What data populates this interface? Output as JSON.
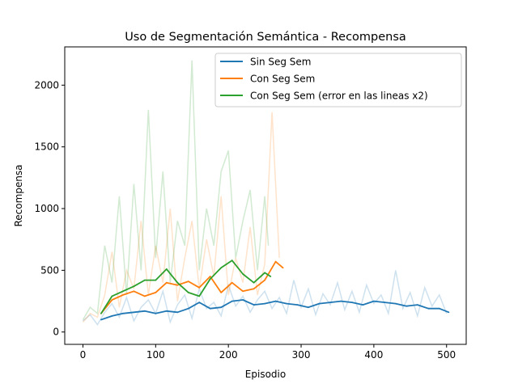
{
  "chart_data": {
    "type": "line",
    "title": "Uso de Segmentación Semántica - Recompensa",
    "xlabel": "Episodio",
    "ylabel": "Recompensa",
    "xlim": [
      -25,
      527
    ],
    "ylim": [
      -100,
      2310
    ],
    "x_ticks": [
      0,
      100,
      200,
      300,
      400,
      500
    ],
    "y_ticks": [
      0,
      500,
      1000,
      1500,
      2000
    ],
    "grid": false,
    "legend_position": "top-right",
    "series": [
      {
        "name": "Sin Seg Sem",
        "color": "#1f77b4",
        "raw_x": [
          0,
          10,
          20,
          30,
          40,
          50,
          60,
          70,
          80,
          90,
          100,
          110,
          120,
          130,
          140,
          150,
          160,
          170,
          180,
          190,
          200,
          210,
          220,
          230,
          240,
          250,
          260,
          270,
          280,
          290,
          300,
          310,
          320,
          330,
          340,
          350,
          360,
          370,
          380,
          390,
          400,
          410,
          420,
          430,
          440,
          450,
          460,
          470,
          480,
          490,
          500
        ],
        "raw_y": [
          90,
          140,
          60,
          160,
          230,
          120,
          280,
          90,
          200,
          260,
          150,
          330,
          80,
          220,
          300,
          110,
          350,
          190,
          240,
          130,
          380,
          210,
          290,
          160,
          260,
          330,
          190,
          280,
          150,
          420,
          200,
          350,
          140,
          310,
          220,
          400,
          180,
          330,
          160,
          380,
          230,
          300,
          150,
          500,
          190,
          320,
          130,
          360,
          210,
          300,
          150
        ],
        "x": [
          25,
          40,
          55,
          70,
          85,
          100,
          115,
          130,
          145,
          160,
          175,
          190,
          205,
          220,
          235,
          250,
          265,
          280,
          295,
          310,
          325,
          340,
          355,
          370,
          385,
          400,
          415,
          430,
          445,
          460,
          475,
          490,
          503
        ],
        "y": [
          100,
          130,
          150,
          160,
          170,
          150,
          170,
          160,
          190,
          240,
          190,
          200,
          250,
          260,
          220,
          230,
          250,
          230,
          220,
          200,
          230,
          240,
          250,
          240,
          220,
          250,
          240,
          230,
          210,
          220,
          190,
          190,
          160
        ]
      },
      {
        "name": "Con Seg Sem",
        "color": "#ff7f0e",
        "raw_x": [
          0,
          10,
          20,
          30,
          40,
          50,
          60,
          70,
          80,
          90,
          100,
          110,
          120,
          130,
          140,
          150,
          160,
          170,
          180,
          190,
          200,
          210,
          220,
          230,
          240,
          250,
          260,
          270
        ],
        "raw_y": [
          80,
          150,
          120,
          300,
          650,
          200,
          500,
          350,
          900,
          300,
          700,
          400,
          1000,
          250,
          600,
          900,
          350,
          750,
          450,
          1100,
          300,
          600,
          400,
          850,
          300,
          550,
          1780,
          600
        ],
        "x": [
          25,
          40,
          55,
          70,
          85,
          100,
          115,
          130,
          145,
          160,
          175,
          190,
          205,
          220,
          235,
          250,
          265,
          275
        ],
        "y": [
          150,
          260,
          300,
          330,
          290,
          320,
          400,
          380,
          410,
          360,
          450,
          320,
          400,
          330,
          350,
          420,
          570,
          520
        ]
      },
      {
        "name": "Con Seg Sem (error en las lineas x2)",
        "color": "#2ca02c",
        "raw_x": [
          0,
          10,
          20,
          30,
          40,
          50,
          60,
          70,
          80,
          90,
          100,
          110,
          120,
          130,
          140,
          150,
          160,
          170,
          180,
          190,
          200,
          210,
          220,
          230,
          240,
          250,
          255
        ],
        "raw_y": [
          100,
          200,
          150,
          700,
          400,
          1100,
          300,
          1200,
          500,
          1800,
          600,
          1300,
          400,
          900,
          700,
          2200,
          500,
          1000,
          700,
          1300,
          1470,
          600,
          900,
          1150,
          500,
          1100,
          700
        ],
        "x": [
          25,
          40,
          55,
          70,
          85,
          100,
          115,
          130,
          145,
          160,
          175,
          190,
          205,
          220,
          235,
          250,
          258
        ],
        "y": [
          150,
          290,
          330,
          370,
          420,
          420,
          510,
          400,
          320,
          290,
          430,
          520,
          580,
          470,
          400,
          480,
          450
        ]
      }
    ]
  }
}
